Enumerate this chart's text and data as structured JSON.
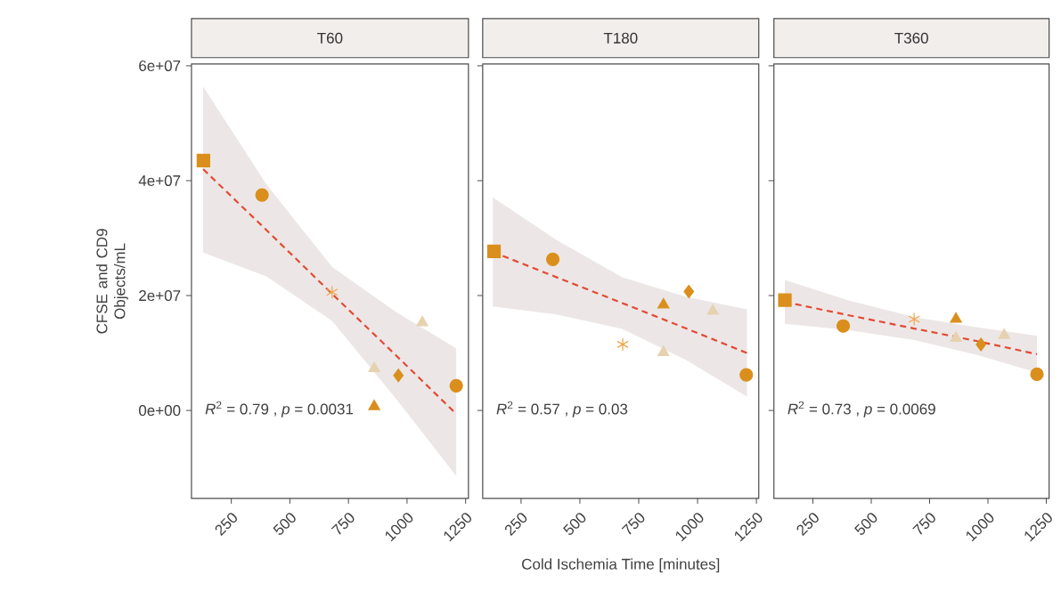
{
  "chart_data": [
    {
      "type": "scatter",
      "title": "T60",
      "ylabel": "CFSE and CD9 Objects/mL",
      "xlim": [
        80,
        1262
      ],
      "ylim": [
        -15300000,
        60300000
      ],
      "xticks": [
        250,
        500,
        750,
        1000,
        1250
      ],
      "yticks": [
        {
          "value": 0,
          "label": "0e+00"
        },
        {
          "value": 20000000,
          "label": "2e+07"
        },
        {
          "value": 40000000,
          "label": "4e+07"
        },
        {
          "value": 60000000,
          "label": "6e+07"
        }
      ],
      "annotations": [
        "*R*$^{2}$ = 0.79 , *p* = 0.0031"
      ],
      "series": [
        {
          "type": "line",
          "color": "#e34a33",
          "line_style": "dashed",
          "marker": "none",
          "x": [
            130,
            400,
            680,
            950,
            1210
          ],
          "values": [
            42000000,
            31400000,
            20300000,
            9700000,
            -600000
          ],
          "lower": [
            27500000,
            23350000,
            15600000,
            2200000,
            -11400000
          ],
          "upper": [
            56400000,
            39350000,
            25000000,
            17200000,
            10800000
          ]
        },
        {
          "color": "#da8f1c",
          "marker": "square",
          "x": [
            131
          ],
          "values": [
            43500000
          ]
        },
        {
          "color": "#da8f1c",
          "marker": "circle",
          "x": [
            381
          ],
          "values": [
            37500000
          ]
        },
        {
          "color": "#f0a54a",
          "marker": "cross",
          "x": [
            680
          ],
          "values": [
            20600000
          ]
        },
        {
          "color": "#e6d2b0",
          "marker": "triangle",
          "x": [
            1065
          ],
          "values": [
            15300000
          ]
        },
        {
          "color": "#e6d2b0",
          "marker": "triangle",
          "x": [
            860
          ],
          "values": [
            7300000
          ]
        },
        {
          "color": "#da8f1c",
          "marker": "diamond",
          "x": [
            963
          ],
          "values": [
            6100000
          ]
        },
        {
          "color": "#da8f1c",
          "marker": "circle",
          "x": [
            1210
          ],
          "values": [
            4300000
          ]
        },
        {
          "color": "#da8f1c",
          "marker": "triangle",
          "x": [
            860
          ],
          "values": [
            700000
          ]
        }
      ]
    },
    {
      "type": "scatter",
      "title": "T180",
      "xlabel": "Cold Ischemia Time [minutes]",
      "tick_labels": "x",
      "xlim": [
        87,
        1260
      ],
      "ylim": [
        -15300000,
        60300000
      ],
      "xticks": [
        250,
        500,
        750,
        1000,
        1250
      ],
      "yticks": [
        {
          "value": 0,
          "label": null
        },
        {
          "value": 20000000,
          "label": null
        },
        {
          "value": 40000000,
          "label": null
        },
        {
          "value": 60000000,
          "label": null
        }
      ],
      "annotations": [
        "*R*$^{2}$ = 0.57 , *p* = 0.03"
      ],
      "series": [
        {
          "type": "line",
          "color": "#e34a33",
          "line_style": "dashed",
          "marker": "none",
          "x": [
            130,
            400,
            680,
            950,
            1210
          ],
          "values": [
            27600000,
            23200000,
            18700000,
            14300000,
            10000000
          ],
          "lower": [
            18100000,
            16700000,
            14200000,
            8800000,
            2400000
          ],
          "upper": [
            37100000,
            29700000,
            23200000,
            19800000,
            17600000
          ]
        },
        {
          "color": "#da8f1c",
          "marker": "square",
          "x": [
            135
          ],
          "values": [
            27700000
          ]
        },
        {
          "color": "#da8f1c",
          "marker": "circle",
          "x": [
            385
          ],
          "values": [
            26300000
          ]
        },
        {
          "color": "#f0a54a",
          "marker": "cross",
          "x": [
            682
          ],
          "values": [
            11500000
          ]
        },
        {
          "color": "#e6d2b0",
          "marker": "triangle",
          "x": [
            855
          ],
          "values": [
            10100000
          ]
        },
        {
          "color": "#da8f1c",
          "marker": "triangle",
          "x": [
            855
          ],
          "values": [
            18400000
          ]
        },
        {
          "color": "#da8f1c",
          "marker": "diamond",
          "x": [
            963
          ],
          "values": [
            20700000
          ]
        },
        {
          "color": "#e6d2b0",
          "marker": "triangle",
          "x": [
            1065
          ],
          "values": [
            17300000
          ]
        },
        {
          "color": "#da8f1c",
          "marker": "circle",
          "x": [
            1207
          ],
          "values": [
            6200000
          ]
        }
      ]
    },
    {
      "type": "scatter",
      "title": "T360",
      "tick_labels": "x",
      "xlim": [
        83,
        1262
      ],
      "ylim": [
        -15300000,
        60300000
      ],
      "xticks": [
        250,
        500,
        750,
        1000,
        1250
      ],
      "yticks": [
        {
          "value": 0,
          "label": null
        },
        {
          "value": 20000000,
          "label": null
        },
        {
          "value": 40000000,
          "label": null
        },
        {
          "value": 60000000,
          "label": null
        }
      ],
      "annotations": [
        "*R*$^{2}$ = 0.73 , *p* = 0.0069"
      ],
      "series": [
        {
          "type": "line",
          "color": "#e34a33",
          "line_style": "dashed",
          "marker": "none",
          "x": [
            130,
            400,
            680,
            950,
            1210
          ],
          "values": [
            18900000,
            16600000,
            14300000,
            12100000,
            9800000
          ],
          "lower": [
            15100000,
            14000000,
            12300000,
            9700000,
            6600000
          ],
          "upper": [
            22700000,
            19200000,
            16300000,
            14500000,
            13000000
          ]
        },
        {
          "color": "#da8f1c",
          "marker": "square",
          "x": [
            130
          ],
          "values": [
            19200000
          ]
        },
        {
          "color": "#da8f1c",
          "marker": "circle",
          "x": [
            380
          ],
          "values": [
            14700000
          ]
        },
        {
          "color": "#f0a54a",
          "marker": "cross",
          "x": [
            684
          ],
          "values": [
            15900000
          ]
        },
        {
          "color": "#e6d2b0",
          "marker": "triangle",
          "x": [
            863
          ],
          "values": [
            12600000
          ]
        },
        {
          "color": "#da8f1c",
          "marker": "triangle",
          "x": [
            863
          ],
          "values": [
            15900000
          ]
        },
        {
          "color": "#da8f1c",
          "marker": "diamond",
          "x": [
            970
          ],
          "values": [
            11500000
          ]
        },
        {
          "color": "#e6d2b0",
          "marker": "triangle",
          "x": [
            1070
          ],
          "values": [
            13100000
          ]
        },
        {
          "color": "#da8f1c",
          "marker": "circle",
          "x": [
            1210
          ],
          "values": [
            6300000
          ]
        }
      ]
    }
  ]
}
